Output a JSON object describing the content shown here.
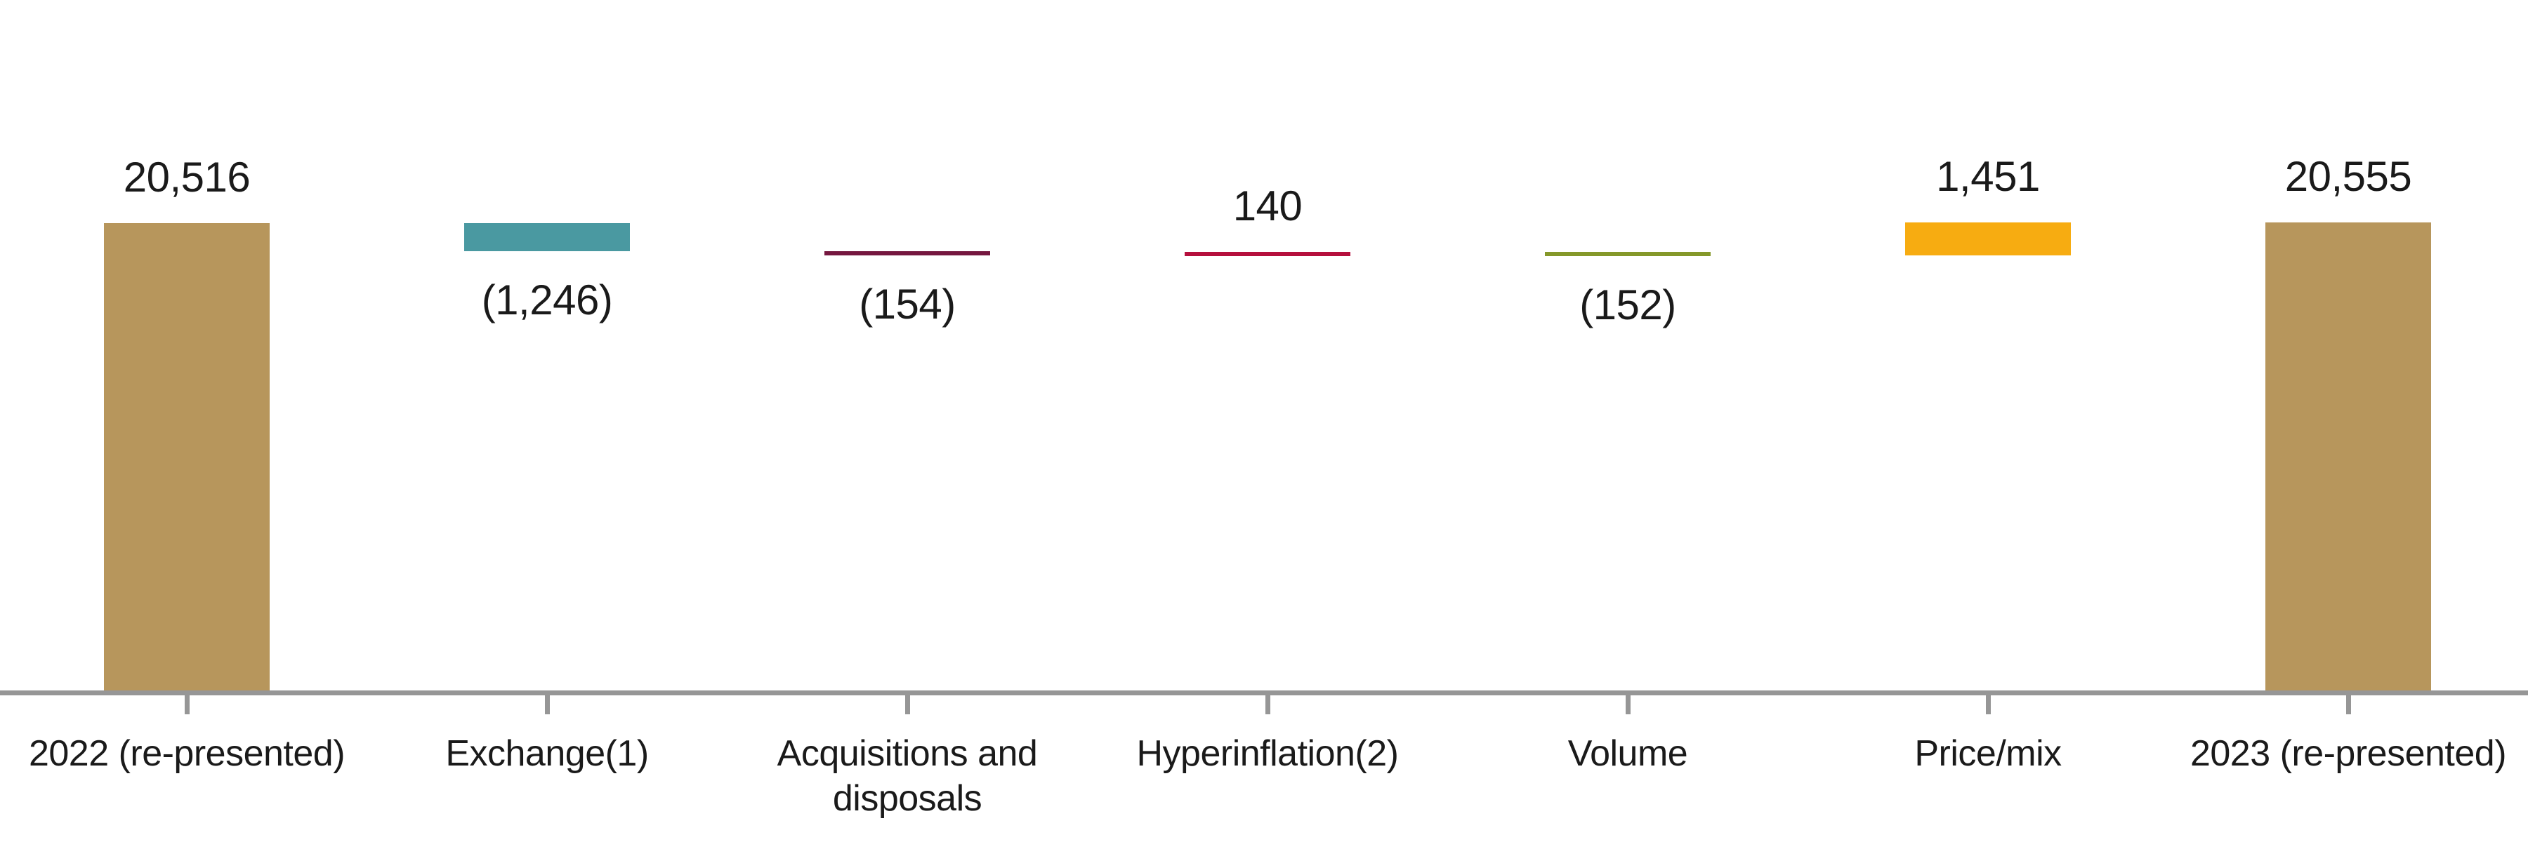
{
  "chart_data": {
    "type": "waterfall",
    "title": "",
    "categories": [
      "2022 (re-presented)",
      "Exchange(1)",
      "Acquisitions and disposals",
      "Hyperinflation(2)",
      "Volume",
      "Price/mix",
      "2023 (re-presented)"
    ],
    "start_total": 20516,
    "end_total": 20555,
    "steps": [
      {
        "category": "2022 (re-presented)",
        "label_lines": [
          "2022 (re-presented)"
        ],
        "kind": "total",
        "value": 20516,
        "display": "20,516",
        "label_position": "above",
        "color": "#B7965C"
      },
      {
        "category": "Exchange(1)",
        "label_lines": [
          "Exchange(1)"
        ],
        "kind": "decrease",
        "value": -1246,
        "display": "(1,246)",
        "label_position": "below",
        "color": "#4A99A1"
      },
      {
        "category": "Acquisitions and disposals",
        "label_lines": [
          "Acquisitions and",
          "disposals"
        ],
        "kind": "decrease",
        "value": -154,
        "display": "(154)",
        "label_position": "below",
        "color": "#75173F"
      },
      {
        "category": "Hyperinflation(2)",
        "label_lines": [
          "Hyperinflation(2)"
        ],
        "kind": "increase",
        "value": 140,
        "display": "140",
        "label_position": "above",
        "color": "#B50F3D"
      },
      {
        "category": "Volume",
        "label_lines": [
          "Volume"
        ],
        "kind": "decrease",
        "value": -152,
        "display": "(152)",
        "label_position": "below",
        "color": "#85982A"
      },
      {
        "category": "Price/mix",
        "label_lines": [
          "Price/mix"
        ],
        "kind": "increase",
        "value": 1451,
        "display": "1,451",
        "label_position": "above",
        "color": "#F7AC11"
      },
      {
        "category": "2023 (re-presented)",
        "label_lines": [
          "2023 (re-presented)"
        ],
        "kind": "total",
        "value": 20555,
        "display": "20,555",
        "label_position": "above",
        "color": "#B7965C"
      }
    ],
    "ylim": [
      0,
      22000
    ],
    "legend": "none",
    "grid": "off",
    "colors": {
      "axis": "#969696",
      "label_text": "#1A1A1A",
      "background": "#FFFFFF"
    }
  }
}
